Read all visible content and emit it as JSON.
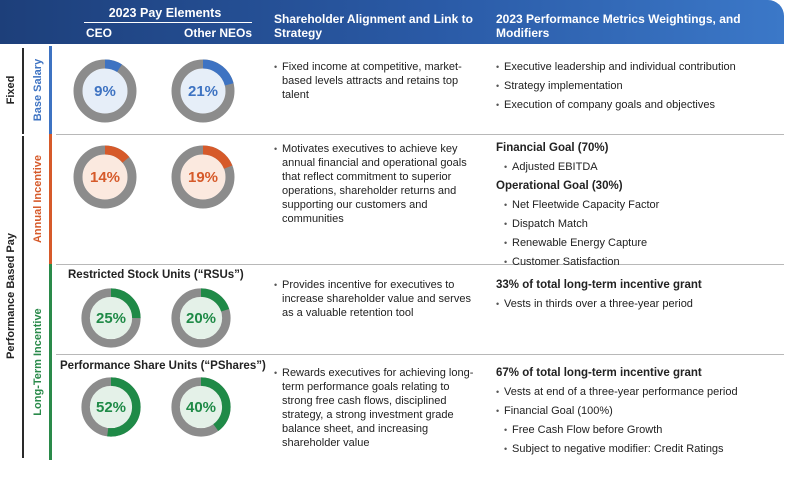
{
  "header": {
    "pay_elements": "2023 Pay Elements",
    "ceo": "CEO",
    "other_neos": "Other NEOs",
    "alignment": "Shareholder Alignment and Link to Strategy",
    "metrics": "2023 Performance Metrics Weightings, and Modifiers"
  },
  "side_labels": {
    "fixed": "Fixed",
    "performance": "Performance Based Pay",
    "base_salary": "Base Salary",
    "annual_incentive": "Annual Incentive",
    "long_term_incentive": "Long-Term Incentive"
  },
  "colors": {
    "blue": "#3e73c2",
    "orange": "#d65a2a",
    "green": "#1f8a47",
    "gray": "#8c8c8c"
  },
  "base_salary": {
    "ceo_pct": "9%",
    "ceo_value": 9,
    "neo_pct": "21%",
    "neo_value": 21,
    "alignment": "Fixed income at competitive, market-based levels attracts and retains top talent",
    "metrics": [
      "Executive leadership and individual contribution",
      "Strategy implementation",
      "Execution of company goals and objectives"
    ]
  },
  "annual_incentive": {
    "ceo_pct": "14%",
    "ceo_value": 14,
    "neo_pct": "19%",
    "neo_value": 19,
    "alignment": "Motivates executives to achieve key annual financial and operational goals that reflect commitment to superior operations, shareholder returns and supporting our customers and communities",
    "financial_goal": "Financial Goal (70%)",
    "financial_items": [
      "Adjusted EBITDA"
    ],
    "operational_goal": "Operational Goal (30%)",
    "operational_items": [
      "Net Fleetwide Capacity Factor",
      "Dispatch Match",
      "Renewable Energy Capture",
      "Customer Satisfaction"
    ]
  },
  "rsu": {
    "title": "Restricted Stock Units (“RSUs”)",
    "ceo_pct": "25%",
    "ceo_value": 25,
    "neo_pct": "20%",
    "neo_value": 20,
    "alignment": "Provides incentive for executives to increase shareholder value and serves as a valuable retention tool",
    "grant": "33% of total long-term incentive grant",
    "items": [
      "Vests in thirds over a three-year period"
    ]
  },
  "pshares": {
    "title": "Performance Share Units (“PShares”)",
    "ceo_pct": "52%",
    "ceo_value": 52,
    "neo_pct": "40%",
    "neo_value": 40,
    "alignment": "Rewards executives for achieving long-term performance goals relating to strong free cash flows, disciplined strategy, a strong investment grade balance sheet, and increasing shareholder value",
    "grant": "67% of total long-term incentive grant",
    "items": [
      "Vests at end of a three-year performance period",
      "Financial Goal (100%)"
    ],
    "sub_items": [
      "Free Cash Flow before Growth",
      "Subject to negative modifier: Credit Ratings"
    ]
  }
}
